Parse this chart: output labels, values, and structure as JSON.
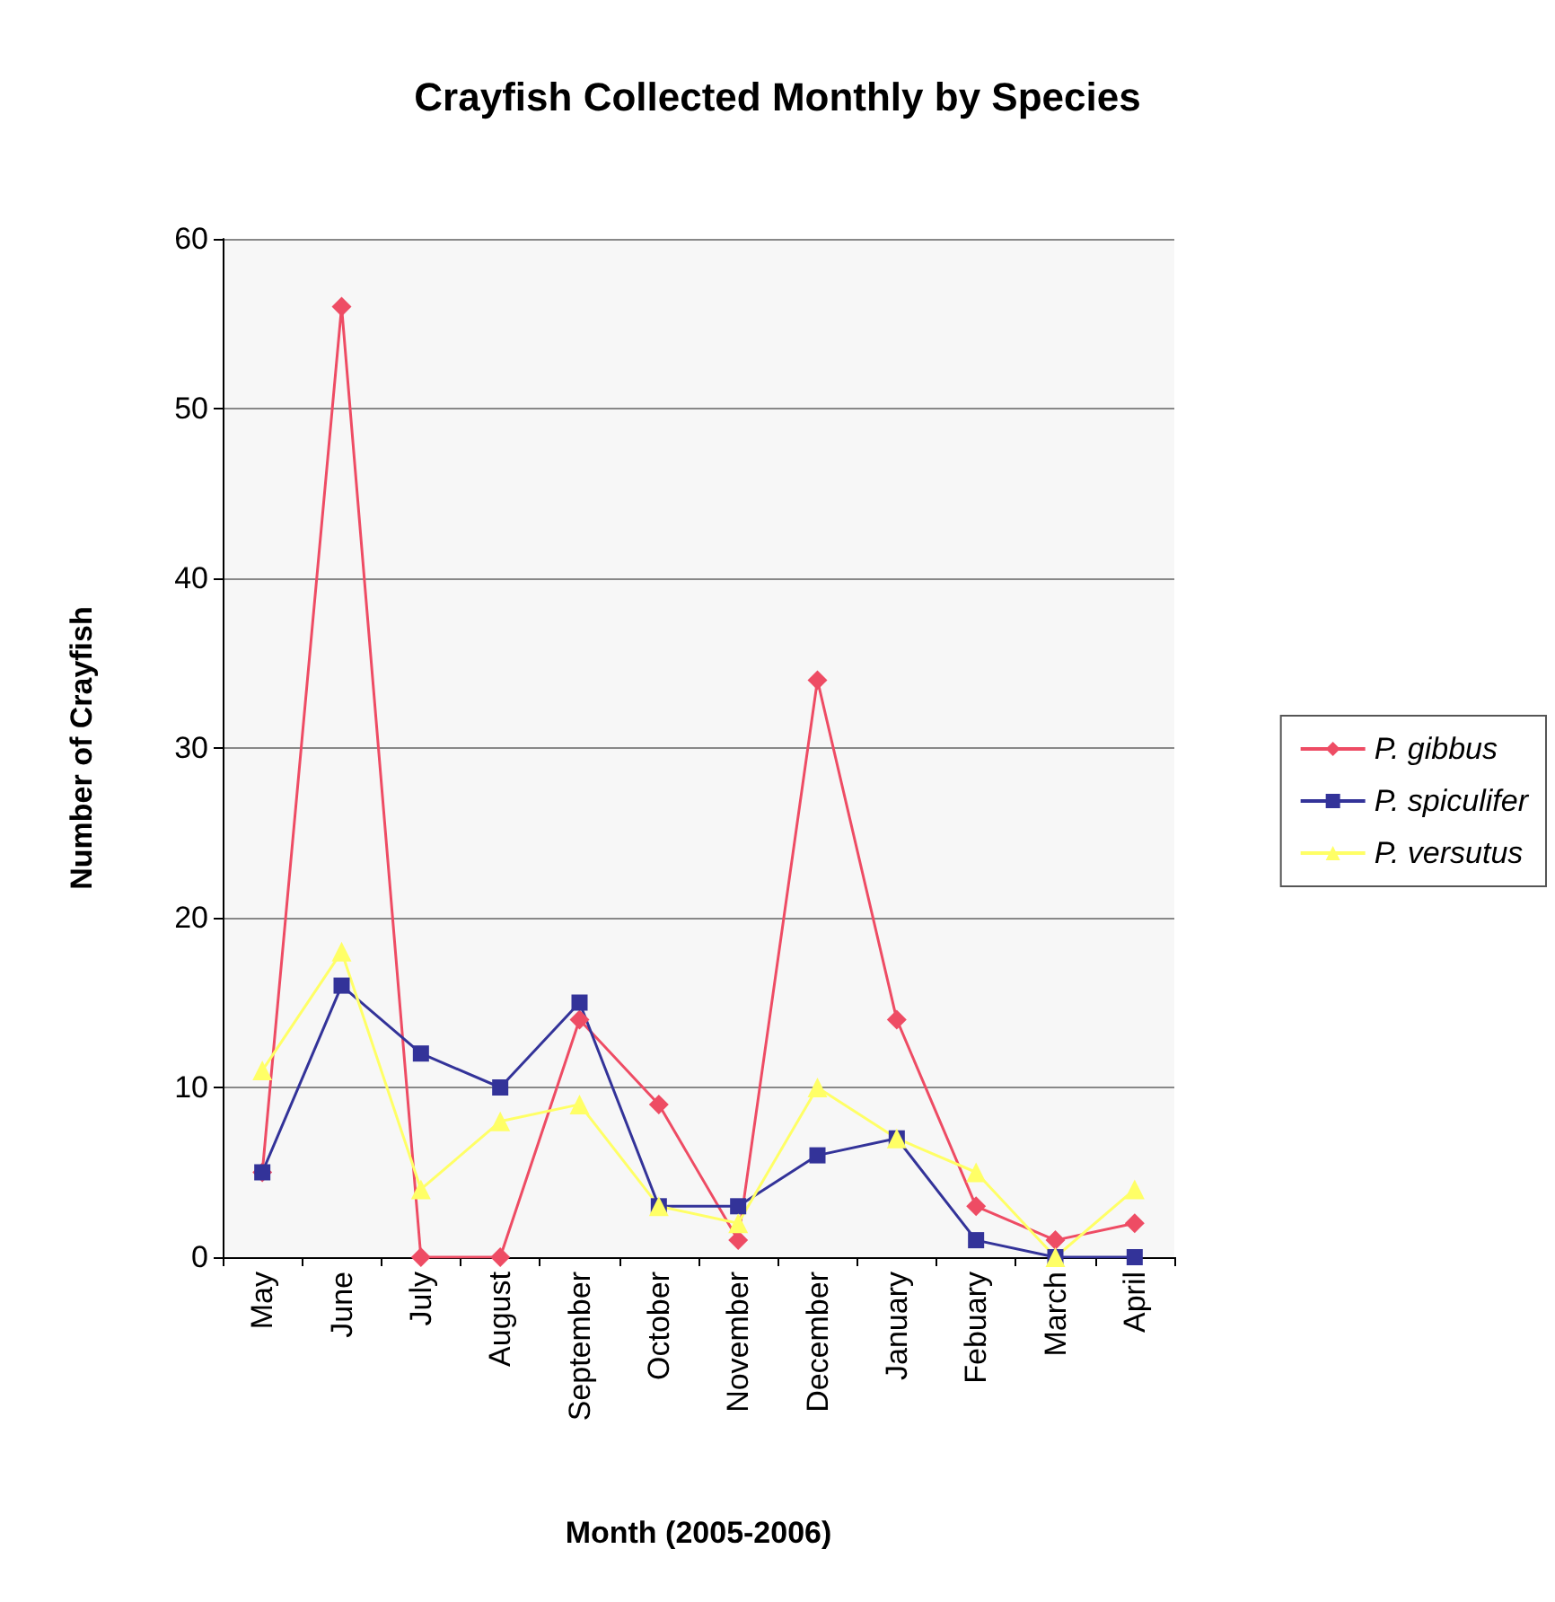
{
  "chart_data": {
    "type": "line",
    "title": "Crayfish Collected Monthly by Species",
    "xlabel": "Month (2005-2006)",
    "ylabel": "Number of Crayfish",
    "categories": [
      "May",
      "June",
      "July",
      "August",
      "September",
      "October",
      "November",
      "December",
      "January",
      "Febuary",
      "March",
      "April"
    ],
    "series": [
      {
        "name": "P. gibbus",
        "color": "#ee4c64",
        "marker": "diamond",
        "values": [
          5,
          56,
          0,
          0,
          14,
          9,
          1,
          34,
          14,
          3,
          1,
          2
        ]
      },
      {
        "name": "P. spiculifer",
        "color": "#333399",
        "marker": "square",
        "values": [
          5,
          16,
          12,
          10,
          15,
          3,
          3,
          6,
          7,
          1,
          0,
          0
        ]
      },
      {
        "name": "P. versutus",
        "color": "#ffff66",
        "marker": "triangle",
        "values": [
          11,
          18,
          4,
          8,
          9,
          3,
          2,
          10,
          7,
          5,
          0,
          4
        ]
      }
    ],
    "ylim": [
      0,
      60
    ],
    "yticks": [
      0,
      10,
      20,
      30,
      40,
      50,
      60
    ],
    "grid": "y",
    "legend": "right",
    "line_style": "solid"
  }
}
